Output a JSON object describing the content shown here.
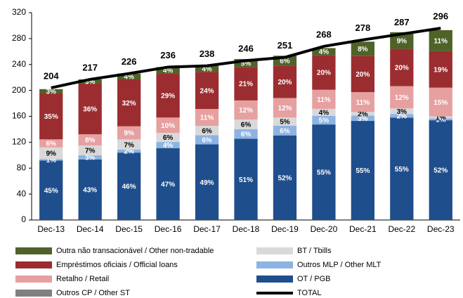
{
  "chart_data": {
    "type": "stacked-bar-share",
    "categories": [
      "Dec-13",
      "Dec-14",
      "Dec-15",
      "Dec-16",
      "Dec-17",
      "Dec-18",
      "Dec-19",
      "Dec-20",
      "Dec-21",
      "Dec-22",
      "Dec-23"
    ],
    "ylim": [
      0,
      320
    ],
    "yticks": [
      0,
      40,
      80,
      120,
      160,
      200,
      240,
      280,
      320
    ],
    "series": [
      {
        "name": "OT / PGB",
        "color": "#1f4e8c",
        "label_color": "#ffffff",
        "values": [
          45,
          43,
          46,
          47,
          49,
          51,
          52,
          55,
          55,
          55,
          52
        ],
        "value_labels": [
          "45%",
          "43%",
          "46%",
          "47%",
          "49%",
          "51%",
          "52%",
          "55%",
          "55%",
          "55%",
          "52%"
        ]
      },
      {
        "name": "Outros MLP / Other MLT",
        "color": "#8db3e2",
        "label_color": "#ffffff",
        "values": [
          1,
          3,
          2,
          4,
          6,
          6,
          6,
          5,
          3,
          2,
          1
        ],
        "value_labels": [
          "1%",
          "3%",
          "2%",
          "4%",
          "6%",
          "6%",
          "6%",
          "5%",
          "3%",
          "2%",
          "1%"
        ]
      },
      {
        "name": "BT / Tbills",
        "color": "#d9d9d9",
        "label_color": "#000000",
        "values": [
          9,
          7,
          7,
          6,
          6,
          6,
          5,
          4,
          2,
          3,
          1
        ],
        "value_labels": [
          "9%",
          "7%",
          "7%",
          "6%",
          "6%",
          "6%",
          "5%",
          "4%",
          "2%",
          "3%",
          "1%"
        ]
      },
      {
        "name": "Outros CP / Other ST",
        "color": "#808080",
        "label_color": "#ffffff",
        "values": [
          null,
          null,
          null,
          null,
          null,
          null,
          null,
          null,
          null,
          null,
          null
        ],
        "value_labels": [
          null,
          null,
          null,
          null,
          null,
          null,
          null,
          null,
          null,
          null,
          null
        ]
      },
      {
        "name": "Retalho / Retail",
        "color": "#e6a0a0",
        "label_color": "#ffffff",
        "values": [
          6,
          8,
          9,
          10,
          11,
          12,
          12,
          11,
          11,
          12,
          15
        ],
        "value_labels": [
          "6%",
          "8%",
          "9%",
          "10%",
          "11%",
          "12%",
          "12%",
          "11%",
          "11%",
          "12%",
          "15%"
        ]
      },
      {
        "name": "Empréstimos oficiais / Official loans",
        "color": "#9b2d30",
        "label_color": "#ffffff",
        "values": [
          35,
          36,
          32,
          29,
          24,
          21,
          20,
          20,
          20,
          20,
          19
        ],
        "value_labels": [
          "35%",
          "36%",
          "32%",
          "29%",
          "24%",
          "21%",
          "20%",
          "20%",
          "20%",
          "20%",
          "19%"
        ]
      },
      {
        "name": "Outra não transacionável / Other non-tradable",
        "color": "#4f6228",
        "label_color": "#ffffff",
        "values": [
          3,
          3,
          4,
          4,
          4,
          5,
          6,
          4,
          8,
          9,
          11
        ],
        "value_labels": [
          "3%",
          "3%",
          "4%",
          "4%",
          "4%",
          "5%",
          "6%",
          "4%",
          "8%",
          "9%",
          "11%"
        ]
      }
    ],
    "total": {
      "name": "TOTAL",
      "color": "#000000",
      "values": [
        204,
        217,
        226,
        236,
        238,
        246,
        251,
        268,
        278,
        287,
        296
      ]
    },
    "legend_order": [
      6,
      5,
      4,
      3,
      2,
      1,
      0
    ]
  }
}
